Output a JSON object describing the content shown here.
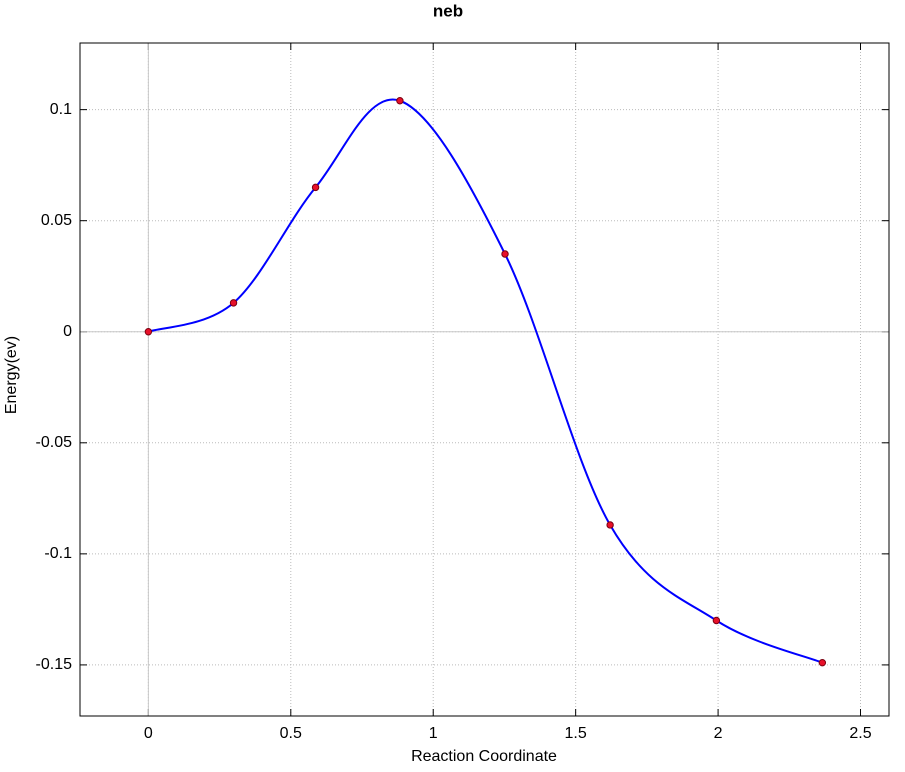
{
  "chart_data": {
    "type": "line",
    "title": "neb",
    "x_label": "Reaction Coordinate",
    "y_label": "Energy(ev)",
    "x": [
      0,
      0.299,
      0.587,
      0.883,
      1.252,
      1.621,
      1.994,
      2.366
    ],
    "values": [
      0,
      0.013,
      0.065,
      0.104,
      0.035,
      -0.087,
      -0.13,
      -0.149
    ],
    "line_color": "#0000ff",
    "marker_color": "#e8102a",
    "xlim": [
      -0.24,
      2.6
    ],
    "xticks": [
      0,
      0.5,
      1,
      1.5,
      2,
      2.5
    ],
    "ylim": [
      -0.173,
      0.13
    ],
    "yticks": [
      -0.15,
      -0.1,
      -0.05,
      0,
      0.05,
      0.1
    ],
    "grid": true,
    "smooth": true
  }
}
